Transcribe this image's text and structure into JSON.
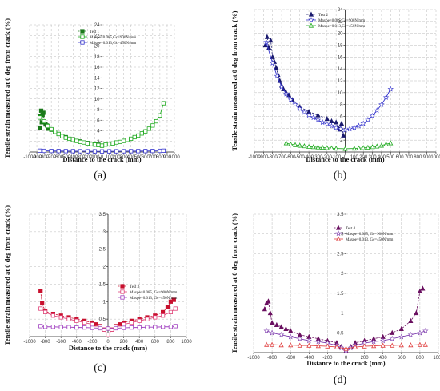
{
  "chart_data": [
    {
      "type": "line",
      "panel_label": "(a)",
      "xlabel": "Distance to the crack (mm)",
      "ylabel": "Tensile strain measured at 0 deg from crack (%)",
      "xlim": [
        -1000,
        1000
      ],
      "ylim": [
        0,
        24
      ],
      "xticks": [
        -1000,
        -900,
        -800,
        -700,
        -600,
        -500,
        -400,
        -300,
        -200,
        -100,
        0,
        100,
        200,
        300,
        400,
        500,
        600,
        700,
        800,
        900,
        1000
      ],
      "yticks": [
        2,
        4,
        6,
        8,
        10,
        12,
        14,
        16,
        18,
        20,
        22,
        24
      ],
      "grid": true,
      "legend_position": "top-left",
      "colors": [
        "#1a7a1a",
        "#1faa1f",
        "#3333cc"
      ],
      "series": [
        {
          "name": "Test 1",
          "style": "test",
          "marker": "square-filled",
          "x": [
            -860,
            -850,
            -840,
            -830,
            -820,
            -810,
            -800,
            -780,
            -760,
            -740,
            -700,
            -650,
            -600,
            -550,
            -500,
            -400,
            -300,
            -200,
            -150,
            -100,
            -50,
            0
          ],
          "y": [
            4.6,
            6.8,
            7.8,
            5.6,
            7.0,
            7.4,
            5.6,
            5.2,
            5.0,
            4.4,
            4.2,
            3.8,
            3.4,
            3.0,
            2.8,
            2.4,
            2.0,
            1.7,
            1.5,
            1.5,
            1.4,
            1.2
          ]
        },
        {
          "name": "Maxpe=0.085,Gc=900N/mm",
          "style": "model",
          "marker": "square-open",
          "x": [
            -860,
            -800,
            -750,
            -700,
            -650,
            -600,
            -550,
            -500,
            -450,
            -400,
            -350,
            -300,
            -250,
            -200,
            -150,
            -100,
            -50,
            0,
            50,
            100,
            150,
            200,
            250,
            300,
            350,
            400,
            450,
            500,
            550,
            600,
            650,
            700,
            750,
            800,
            850
          ],
          "y": [
            6.5,
            5.8,
            4.9,
            4.3,
            3.8,
            3.4,
            3.0,
            2.7,
            2.5,
            2.3,
            2.1,
            1.9,
            1.8,
            1.6,
            1.5,
            1.4,
            1.3,
            1.2,
            1.4,
            1.5,
            1.6,
            1.8,
            1.9,
            2.1,
            2.3,
            2.5,
            2.8,
            3.1,
            3.5,
            3.9,
            4.4,
            5.0,
            5.8,
            6.9,
            9.2
          ]
        },
        {
          "name": "Maxpe=0.013,Gc=450N/mm",
          "style": "model",
          "marker": "square-open",
          "x": [
            -860,
            -800,
            -700,
            -600,
            -500,
            -400,
            -300,
            -200,
            -100,
            0,
            100,
            200,
            300,
            400,
            500,
            600,
            700,
            800,
            850
          ],
          "y": [
            0.25,
            0.22,
            0.2,
            0.18,
            0.17,
            0.16,
            0.15,
            0.14,
            0.13,
            0.12,
            0.13,
            0.14,
            0.15,
            0.16,
            0.17,
            0.18,
            0.2,
            0.22,
            0.25
          ]
        }
      ]
    },
    {
      "type": "line",
      "panel_label": "(b)",
      "xlabel": "Distance to the crack (mm)",
      "ylabel": "Tensile strain measured at 0 deg from crack (%)",
      "xlim": [
        -1000,
        1000
      ],
      "ylim": [
        0,
        24
      ],
      "xticks": [
        -1000,
        -900,
        -800,
        -700,
        -600,
        -500,
        -400,
        -300,
        -200,
        -100,
        0,
        100,
        200,
        300,
        400,
        500,
        600,
        700,
        800,
        900,
        1000
      ],
      "yticks": [
        2,
        4,
        6,
        8,
        10,
        12,
        14,
        16,
        18,
        20,
        22,
        24
      ],
      "grid": true,
      "legend_position": "top-center",
      "colors": [
        "#1a1a6e",
        "#3333cc",
        "#1faa1f"
      ],
      "series": [
        {
          "name": "Test 2",
          "style": "test",
          "marker": "triangle-filled",
          "x": [
            -880,
            -860,
            -840,
            -820,
            -800,
            -780,
            -760,
            -740,
            -720,
            -700,
            -680,
            -650,
            -620,
            -580,
            -500,
            -400,
            -300,
            -200,
            -150,
            -100,
            -80,
            -60,
            -40,
            -20
          ],
          "y": [
            18.0,
            19.4,
            17.6,
            18.8,
            16.0,
            15.2,
            14.2,
            13.0,
            12.0,
            11.2,
            10.6,
            10.0,
            9.6,
            8.8,
            7.6,
            6.8,
            6.2,
            5.6,
            5.2,
            5.0,
            4.2,
            3.8,
            4.8,
            2.8
          ]
        },
        {
          "name": "Maxpe=0.085,Gc=900N/mm",
          "style": "model",
          "marker": "star",
          "x": [
            -870,
            -800,
            -750,
            -700,
            -650,
            -600,
            -550,
            -500,
            -450,
            -400,
            -350,
            -300,
            -250,
            -200,
            -150,
            -100,
            -50,
            0,
            50,
            100,
            150,
            200,
            250,
            300,
            350,
            400,
            450,
            500
          ],
          "y": [
            18.5,
            15.0,
            12.8,
            11.0,
            9.8,
            8.8,
            8.0,
            7.3,
            6.7,
            6.2,
            5.8,
            5.4,
            5.0,
            4.7,
            4.4,
            4.1,
            3.9,
            3.7,
            3.9,
            4.1,
            4.4,
            4.8,
            5.4,
            6.1,
            7.0,
            8.0,
            9.2,
            10.6
          ]
        },
        {
          "name": "Maxpe=0.013,Gc=450N/mm",
          "style": "model",
          "marker": "triangle-open",
          "x": [
            -650,
            -600,
            -550,
            -500,
            -450,
            -400,
            -350,
            -300,
            -250,
            -200,
            -150,
            -100,
            0,
            100,
            150,
            200,
            250,
            300,
            350,
            400,
            450,
            500
          ],
          "y": [
            1.5,
            1.3,
            1.2,
            1.1,
            1.0,
            0.9,
            0.85,
            0.8,
            0.75,
            0.7,
            0.65,
            0.6,
            0.55,
            0.6,
            0.65,
            0.7,
            0.75,
            0.85,
            0.95,
            1.1,
            1.3,
            1.5
          ]
        }
      ]
    },
    {
      "type": "line",
      "panel_label": "(c)",
      "xlabel": "Distance to the crack (mm)",
      "ylabel": "Tensile strain measured at 0 deg from crack (%)",
      "xlim": [
        -1000,
        1000
      ],
      "ylim": [
        0,
        3.5
      ],
      "xticks": [
        -1000,
        -800,
        -600,
        -400,
        -200,
        0,
        200,
        400,
        600,
        800,
        1000
      ],
      "yticks": [
        0.5,
        1,
        1.5,
        2,
        2.5,
        3,
        3.5
      ],
      "grid": true,
      "legend_position": "top-right",
      "colors": [
        "#c8102e",
        "#e0457a",
        "#a040c0"
      ],
      "series": [
        {
          "name": "Test 3",
          "style": "test",
          "marker": "square-filled",
          "x": [
            -860,
            -840,
            -800,
            -700,
            -600,
            -500,
            -400,
            -300,
            -200,
            -150,
            -100,
            -50,
            0,
            50,
            100,
            150,
            200,
            300,
            400,
            500,
            600,
            700,
            760,
            800,
            840
          ],
          "y": [
            1.3,
            0.95,
            0.72,
            0.65,
            0.6,
            0.55,
            0.5,
            0.45,
            0.4,
            0.35,
            0.3,
            0.2,
            0.05,
            0.2,
            0.3,
            0.35,
            0.4,
            0.45,
            0.5,
            0.55,
            0.6,
            0.7,
            0.85,
            1.0,
            1.05
          ]
        },
        {
          "name": "Maxpe=0.085, Gc=900N/mm",
          "style": "model",
          "marker": "square-open",
          "x": [
            -860,
            -800,
            -700,
            -600,
            -500,
            -400,
            -300,
            -200,
            -100,
            -50,
            0,
            50,
            100,
            200,
            300,
            400,
            500,
            600,
            700,
            800,
            860
          ],
          "y": [
            0.8,
            0.7,
            0.6,
            0.55,
            0.5,
            0.45,
            0.4,
            0.35,
            0.28,
            0.2,
            0.05,
            0.2,
            0.28,
            0.35,
            0.4,
            0.45,
            0.5,
            0.55,
            0.6,
            0.7,
            0.8
          ]
        },
        {
          "name": "Maxpe=0.013, Gc=450N/mm",
          "style": "model",
          "marker": "square-open",
          "x": [
            -860,
            -800,
            -700,
            -600,
            -500,
            -400,
            -300,
            -200,
            -100,
            0,
            100,
            200,
            300,
            400,
            500,
            600,
            700,
            800,
            860
          ],
          "y": [
            0.3,
            0.28,
            0.28,
            0.27,
            0.27,
            0.26,
            0.26,
            0.25,
            0.24,
            0.23,
            0.24,
            0.25,
            0.26,
            0.26,
            0.27,
            0.27,
            0.28,
            0.28,
            0.3
          ]
        }
      ]
    },
    {
      "type": "line",
      "panel_label": "(d)",
      "xlabel": "Distance to the crack (mm)",
      "ylabel": "Tensile strain measured at 0 deg from crack (%)",
      "xlim": [
        -1000,
        1000
      ],
      "ylim": [
        0,
        3.5
      ],
      "xticks": [
        -1000,
        -800,
        -600,
        -400,
        -200,
        0,
        200,
        400,
        600,
        800,
        1000
      ],
      "yticks": [
        0.5,
        1,
        1.5,
        2,
        2.5,
        3,
        3.5
      ],
      "grid": true,
      "legend_position": "top-left",
      "colors": [
        "#6a1060",
        "#8040b0",
        "#e04040"
      ],
      "series": [
        {
          "name": "Test 4",
          "style": "test",
          "marker": "triangle-filled",
          "x": [
            -880,
            -860,
            -840,
            -820,
            -800,
            -750,
            -700,
            -650,
            -600,
            -500,
            -400,
            -300,
            -200,
            -100,
            -50,
            0,
            50,
            100,
            200,
            300,
            400,
            500,
            600,
            700,
            760,
            800,
            830
          ],
          "y": [
            1.1,
            1.25,
            1.3,
            1.0,
            0.75,
            0.7,
            0.65,
            0.6,
            0.55,
            0.45,
            0.4,
            0.35,
            0.3,
            0.25,
            0.15,
            0.05,
            0.15,
            0.25,
            0.3,
            0.35,
            0.4,
            0.5,
            0.6,
            0.8,
            1.0,
            1.55,
            1.62
          ]
        },
        {
          "name": "Maxpe=0.085, Gc=900N/mm",
          "style": "model",
          "marker": "star",
          "x": [
            -860,
            -800,
            -700,
            -600,
            -500,
            -400,
            -300,
            -200,
            -100,
            -50,
            0,
            50,
            100,
            200,
            300,
            400,
            500,
            600,
            700,
            800,
            860
          ],
          "y": [
            0.55,
            0.5,
            0.45,
            0.4,
            0.35,
            0.3,
            0.28,
            0.24,
            0.18,
            0.12,
            0.04,
            0.12,
            0.18,
            0.24,
            0.28,
            0.3,
            0.35,
            0.4,
            0.45,
            0.5,
            0.55
          ]
        },
        {
          "name": "Maxpe=0.013, Gc=450N/mm",
          "style": "model",
          "marker": "triangle-open",
          "x": [
            -860,
            -800,
            -700,
            -600,
            -500,
            -400,
            -300,
            -200,
            -100,
            0,
            100,
            200,
            300,
            400,
            500,
            600,
            700,
            800,
            860
          ],
          "y": [
            0.2,
            0.2,
            0.19,
            0.19,
            0.18,
            0.18,
            0.17,
            0.16,
            0.14,
            0.1,
            0.14,
            0.16,
            0.17,
            0.18,
            0.18,
            0.19,
            0.19,
            0.2,
            0.2
          ]
        }
      ]
    }
  ]
}
